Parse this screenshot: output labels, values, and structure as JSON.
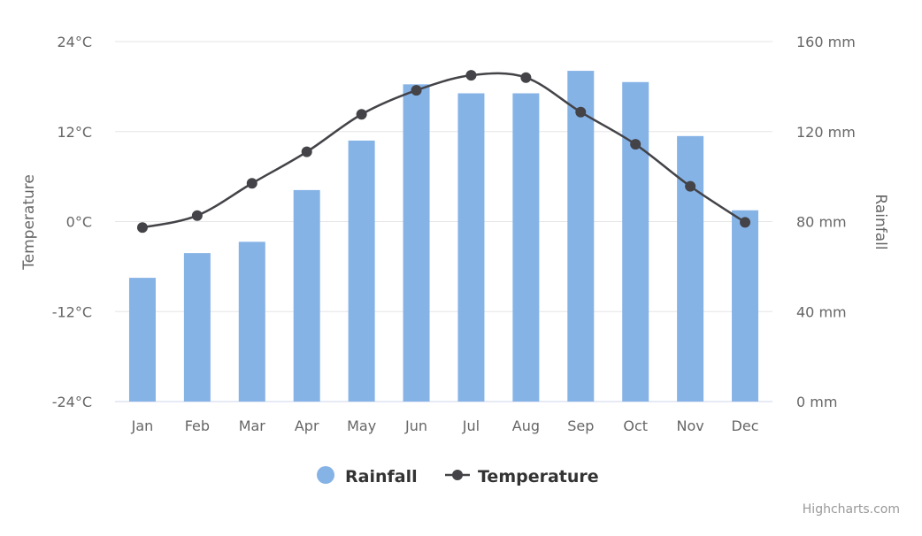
{
  "chart_data": {
    "type": "bar+line",
    "categories": [
      "Jan",
      "Feb",
      "Mar",
      "Apr",
      "May",
      "Jun",
      "Jul",
      "Aug",
      "Sep",
      "Oct",
      "Nov",
      "Dec"
    ],
    "series": [
      {
        "name": "Rainfall",
        "type": "bar",
        "axis": "right",
        "color": "#86b3e6",
        "values": [
          55,
          66,
          71,
          94,
          116,
          141,
          137,
          137,
          147,
          142,
          118,
          85
        ]
      },
      {
        "name": "Temperature",
        "type": "line",
        "axis": "left",
        "color": "#434348",
        "values": [
          -0.8,
          0.8,
          5.1,
          9.3,
          14.3,
          17.5,
          19.5,
          19.2,
          14.6,
          10.3,
          4.7,
          -0.1
        ]
      }
    ],
    "yleft": {
      "label": "Temperature",
      "range": [
        -24,
        24
      ],
      "ticks": [
        "24°C",
        "12°C",
        "0°C",
        "-12°C",
        "-24°C"
      ]
    },
    "yright": {
      "label": "Rainfall",
      "range": [
        0,
        160
      ],
      "ticks": [
        "160 mm",
        "120 mm",
        "80 mm",
        "40 mm",
        "0 mm"
      ]
    },
    "grid": true,
    "legend": "bottom-center",
    "credits": "Highcharts.com"
  }
}
